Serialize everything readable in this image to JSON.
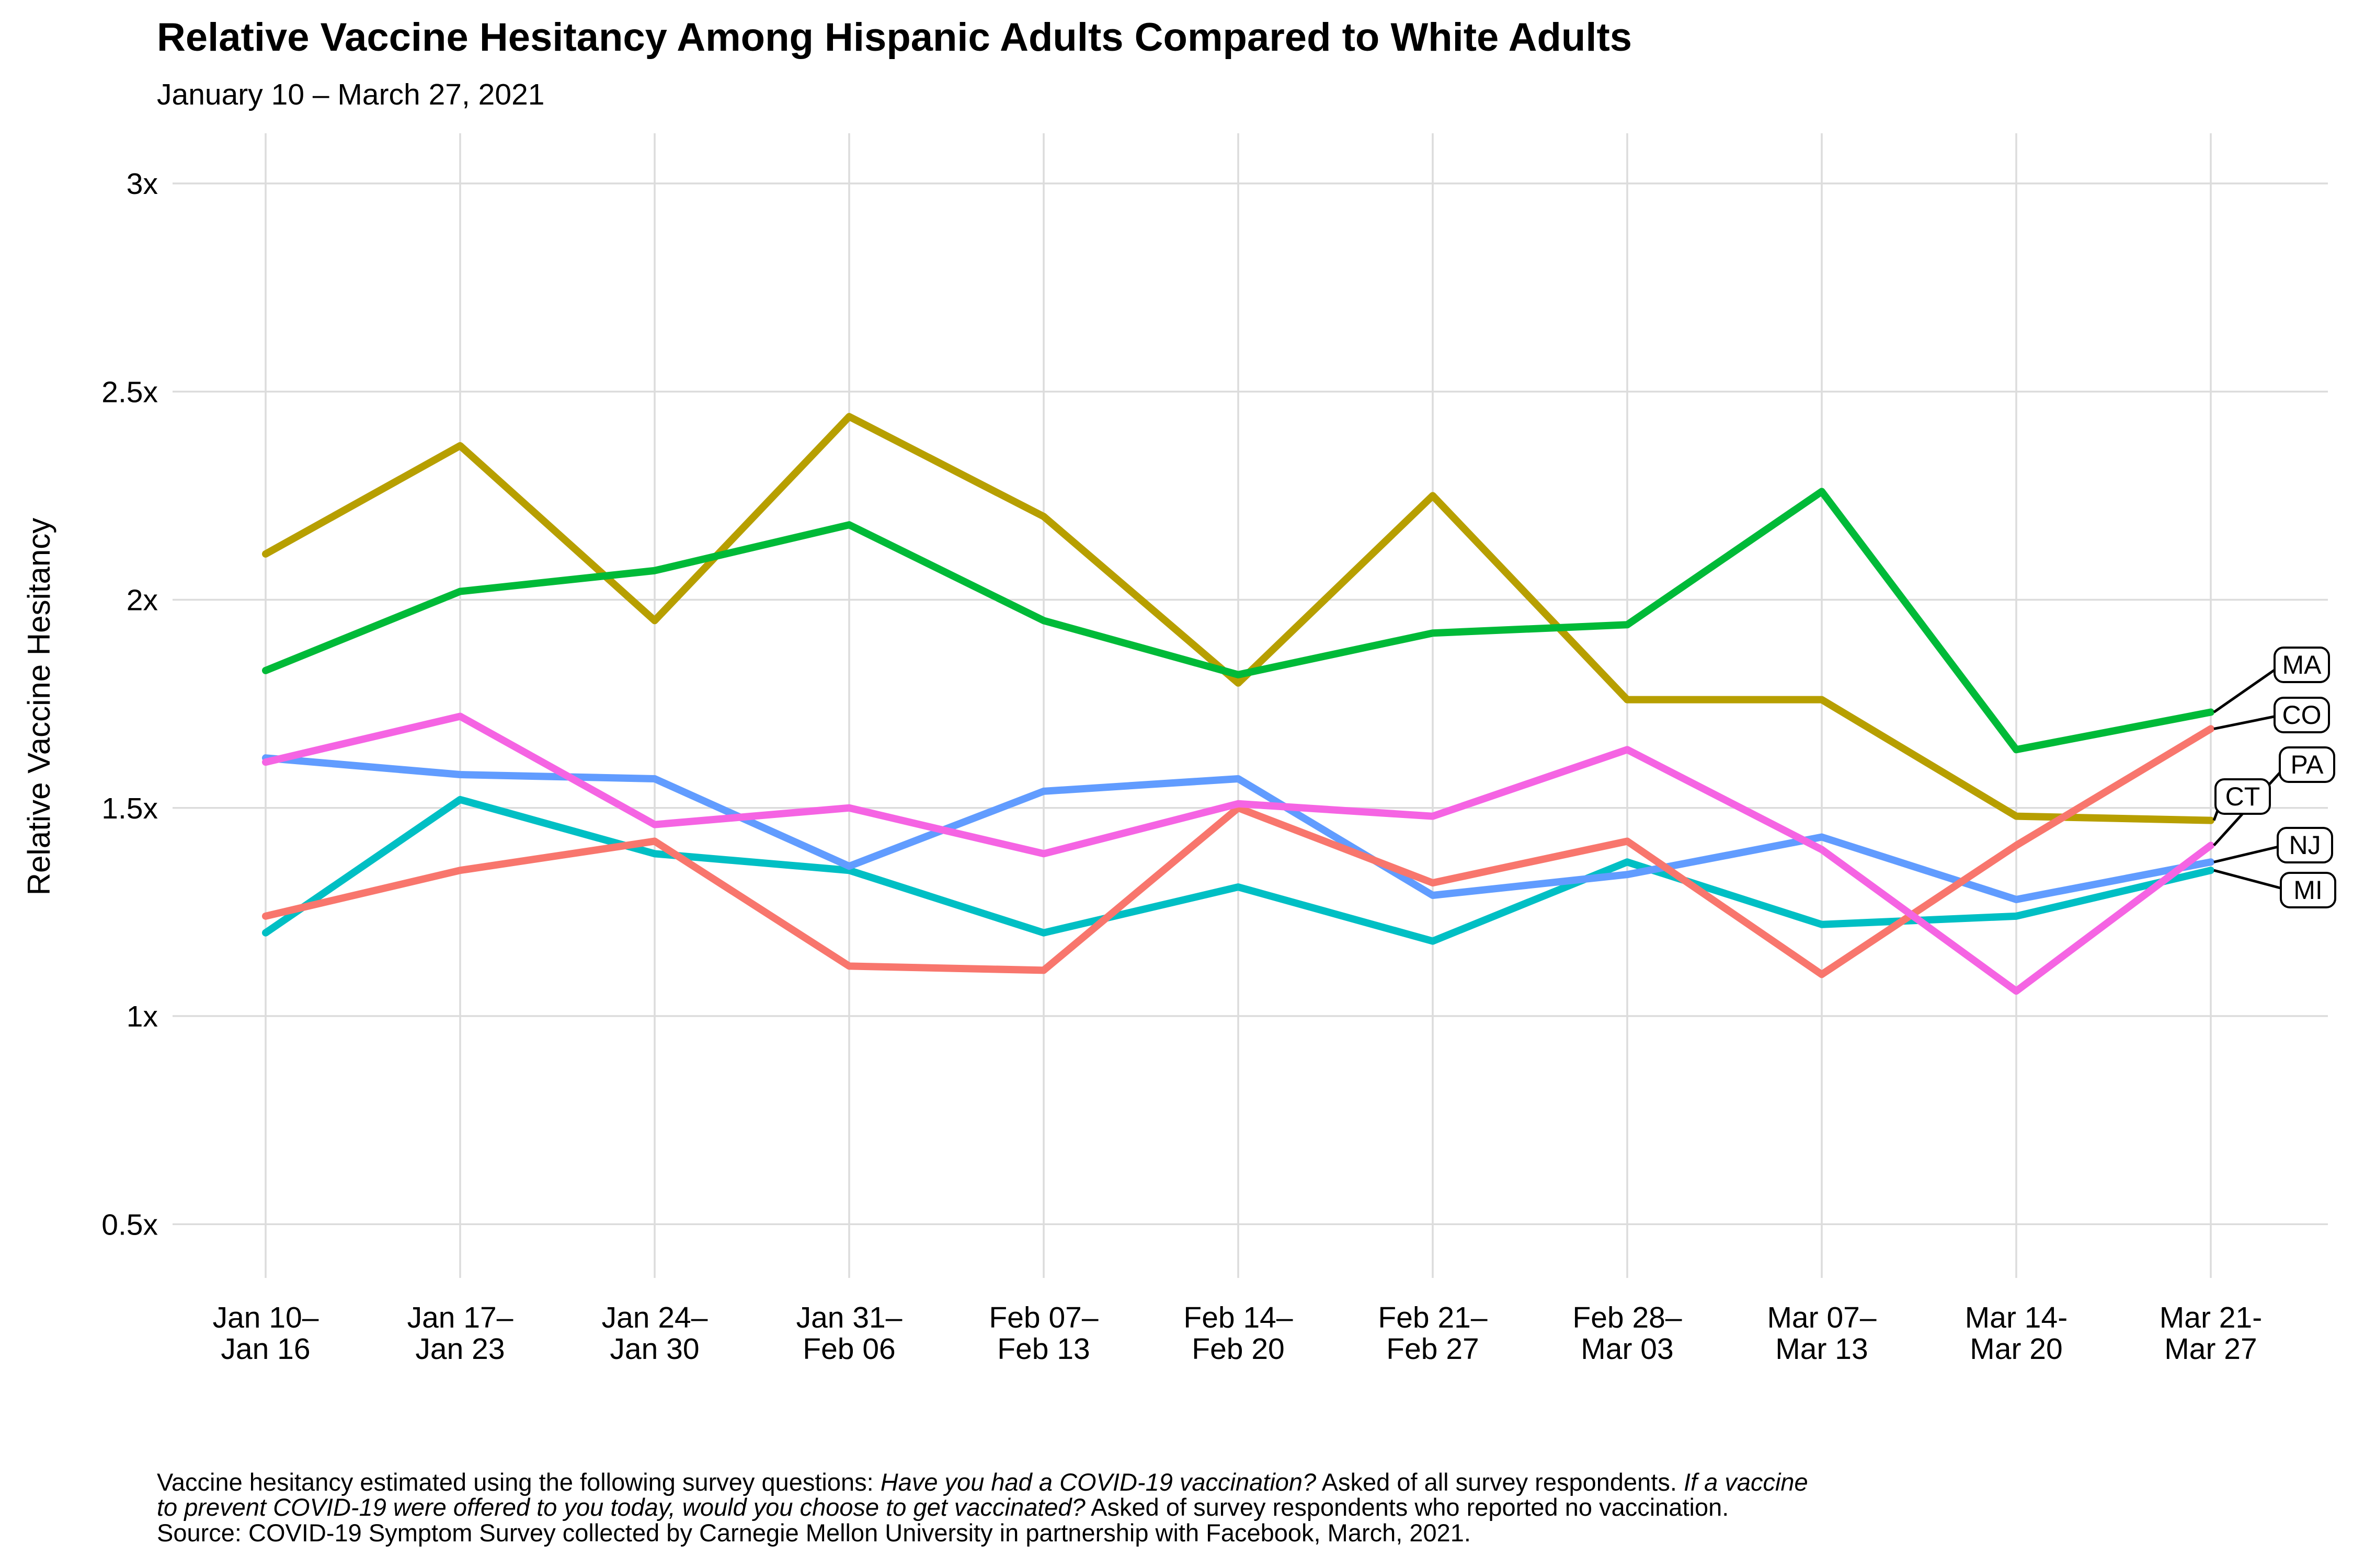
{
  "header": {
    "title": "Relative Vaccine Hesitancy Among Hispanic Adults Compared to White Adults",
    "subtitle": "January 10 – March 27, 2021"
  },
  "chart_data": {
    "type": "line",
    "title": "Relative Vaccine Hesitancy Among Hispanic Adults Compared to White Adults",
    "subtitle": "January 10 – March 27, 2021",
    "ylabel": "Relative Vaccine Hesitancy",
    "xlabel": "",
    "grid": true,
    "legend_position": "right-end-labels",
    "ylim": [
      0.42,
      3.1
    ],
    "y_ticks": [
      {
        "label": "3x",
        "value": 3.0
      },
      {
        "label": "2.5x",
        "value": 2.5
      },
      {
        "label": "2x",
        "value": 2.0
      },
      {
        "label": "1.5x",
        "value": 1.5
      },
      {
        "label": "1x",
        "value": 1.0
      },
      {
        "label": "0.5x",
        "value": 0.5
      }
    ],
    "categories": [
      {
        "line1": "Jan 10–",
        "line2": "Jan 16"
      },
      {
        "line1": "Jan 17–",
        "line2": "Jan 23"
      },
      {
        "line1": "Jan 24–",
        "line2": "Jan 30"
      },
      {
        "line1": "Jan 31–",
        "line2": "Feb 06"
      },
      {
        "line1": "Feb 07–",
        "line2": "Feb 13"
      },
      {
        "line1": "Feb 14–",
        "line2": "Feb 20"
      },
      {
        "line1": "Feb 21–",
        "line2": "Feb 27"
      },
      {
        "line1": "Feb 28–",
        "line2": "Mar 03"
      },
      {
        "line1": "Mar 07–",
        "line2": "Mar 13"
      },
      {
        "line1": "Mar 14-",
        "line2": "Mar 20"
      },
      {
        "line1": "Mar 21-",
        "line2": "Mar 27"
      }
    ],
    "series": [
      {
        "name": "CT",
        "color": "#B79F00",
        "values": [
          2.11,
          2.37,
          1.95,
          2.44,
          2.2,
          1.8,
          2.25,
          1.76,
          1.76,
          1.48,
          1.47
        ]
      },
      {
        "name": "MA",
        "color": "#00BA38",
        "values": [
          1.83,
          2.02,
          2.07,
          2.18,
          1.95,
          1.82,
          1.92,
          1.94,
          2.26,
          1.64,
          1.73
        ]
      },
      {
        "name": "MI",
        "color": "#00BFC4",
        "values": [
          1.2,
          1.52,
          1.39,
          1.35,
          1.2,
          1.31,
          1.18,
          1.37,
          1.22,
          1.24,
          1.35
        ]
      },
      {
        "name": "NJ",
        "color": "#619CFF",
        "values": [
          1.62,
          1.58,
          1.57,
          1.36,
          1.54,
          1.57,
          1.29,
          1.34,
          1.43,
          1.28,
          1.37
        ]
      },
      {
        "name": "CO",
        "color": "#F8766D",
        "values": [
          1.24,
          1.35,
          1.42,
          1.12,
          1.11,
          1.5,
          1.32,
          1.42,
          1.1,
          1.41,
          1.69
        ]
      },
      {
        "name": "PA",
        "color": "#F564E3",
        "values": [
          1.61,
          1.72,
          1.46,
          1.5,
          1.39,
          1.51,
          1.48,
          1.64,
          1.4,
          1.06,
          1.41
        ]
      }
    ],
    "end_labels": [
      {
        "text": "MA",
        "box_x": 4350,
        "box_cy": 1272
      },
      {
        "text": "CO",
        "box_x": 4350,
        "box_cy": 1368
      },
      {
        "text": "PA",
        "box_x": 4360,
        "box_cy": 1463
      },
      {
        "text": "CT",
        "box_x": 4237,
        "box_cy": 1524
      },
      {
        "text": "NJ",
        "box_x": 4356,
        "box_cy": 1617
      },
      {
        "text": "MI",
        "box_x": 4362,
        "box_cy": 1703
      }
    ]
  },
  "footnote": {
    "lines": [
      [
        {
          "t": "Vaccine hesitancy estimated using the following survey questions: ",
          "i": false
        },
        {
          "t": "Have you had a COVID-19 vaccination?",
          "i": true
        },
        {
          "t": " Asked of all survey respondents. ",
          "i": false
        },
        {
          "t": "If a vaccine",
          "i": true
        }
      ],
      [
        {
          "t": "to prevent COVID-19 were offered to you today, would you choose to get vaccinated?",
          "i": true
        },
        {
          "t": " Asked of survey respondents who reported no vaccination.",
          "i": false
        }
      ],
      [
        {
          "t": "Source: COVID-19 Symptom Survey collected by Carnegie Mellon University in partnership with Facebook, March, 2021.",
          "i": false
        }
      ]
    ]
  }
}
